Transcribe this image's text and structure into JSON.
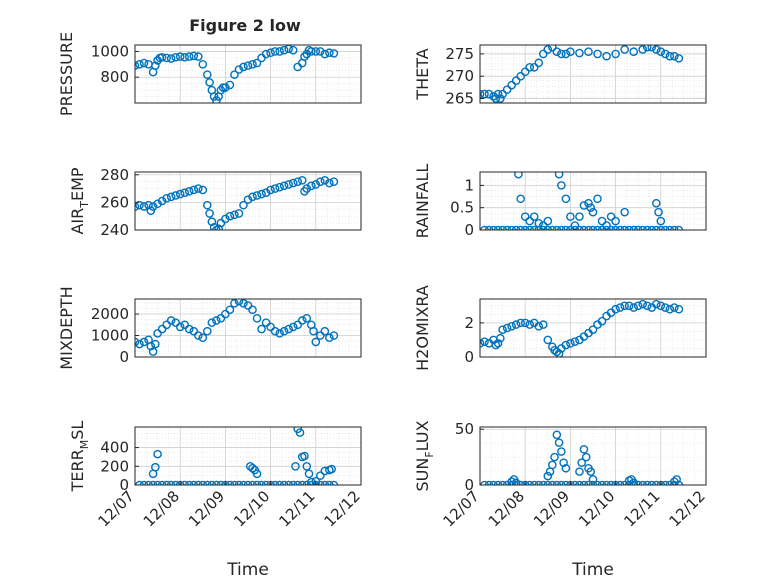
{
  "figure": {
    "title": "Figure 2 low"
  },
  "colors": {
    "marker": "#0072BD",
    "axis": "#262626",
    "grid": "#dcdcdc",
    "background": "#ffffff"
  },
  "chart_data": [
    {
      "type": "scatter",
      "marker": "open-circle",
      "grid": true,
      "minor_grid": true,
      "title": "Figure 2 low",
      "ylabel": "PRESSURE",
      "xlabel": "",
      "ylim": [
        600,
        1050
      ],
      "yticks": [
        800,
        1000
      ],
      "xticks": [],
      "x": [
        0.0,
        0.1,
        0.2,
        0.3,
        0.4,
        0.45,
        0.5,
        0.55,
        0.6,
        0.7,
        0.8,
        0.9,
        1.0,
        1.1,
        1.2,
        1.3,
        1.4,
        1.5,
        1.6,
        1.65,
        1.7,
        1.75,
        1.8,
        1.85,
        1.9,
        1.95,
        2.0,
        2.1,
        2.2,
        2.3,
        2.4,
        2.5,
        2.6,
        2.7,
        2.8,
        2.9,
        3.0,
        3.1,
        3.2,
        3.3,
        3.4,
        3.5,
        3.6,
        3.7,
        3.75,
        3.8,
        3.85,
        3.9,
        4.0,
        4.1,
        4.2,
        4.3,
        4.4
      ],
      "y": [
        890,
        900,
        910,
        900,
        840,
        890,
        930,
        950,
        955,
        950,
        945,
        955,
        960,
        955,
        960,
        965,
        960,
        900,
        820,
        760,
        700,
        650,
        620,
        650,
        700,
        720,
        720,
        740,
        820,
        860,
        880,
        890,
        900,
        910,
        950,
        980,
        990,
        1000,
        1000,
        1010,
        1020,
        1010,
        880,
        910,
        960,
        980,
        1010,
        1000,
        1000,
        1000,
        980,
        990,
        985
      ]
    },
    {
      "type": "scatter",
      "marker": "open-circle",
      "grid": true,
      "minor_grid": true,
      "ylabel": "THETA",
      "xlabel": "",
      "ylim": [
        264,
        277
      ],
      "yticks": [
        265,
        270,
        275
      ],
      "xticks": [],
      "x": [
        0.0,
        0.1,
        0.2,
        0.3,
        0.35,
        0.4,
        0.45,
        0.5,
        0.6,
        0.7,
        0.8,
        0.9,
        1.0,
        1.1,
        1.2,
        1.3,
        1.4,
        1.5,
        1.6,
        1.7,
        1.8,
        1.9,
        2.0,
        2.2,
        2.4,
        2.6,
        2.8,
        3.0,
        3.2,
        3.4,
        3.6,
        3.7,
        3.8,
        3.9,
        4.0,
        4.1,
        4.2,
        4.3,
        4.4
      ],
      "y": [
        266,
        266,
        266,
        265.5,
        265,
        266,
        265,
        266,
        267,
        268,
        269,
        270,
        271,
        272,
        272,
        273,
        275,
        276,
        276.5,
        275.5,
        275,
        275,
        275.5,
        275.2,
        275.5,
        275,
        274.5,
        275,
        276,
        275.5,
        276,
        276.5,
        276.5,
        276,
        275.5,
        275,
        274.5,
        274.5,
        274
      ]
    },
    {
      "type": "scatter",
      "marker": "open-circle",
      "grid": true,
      "minor_grid": true,
      "ylabel": "AIR_TEMP",
      "ylabel_display": "AIR",
      "ylabel_sub": "T",
      "ylabel_after": "EMP",
      "xlabel": "",
      "ylim": [
        240,
        282
      ],
      "yticks": [
        240,
        260,
        280
      ],
      "xticks": [],
      "x": [
        0.0,
        0.1,
        0.2,
        0.3,
        0.35,
        0.4,
        0.5,
        0.6,
        0.7,
        0.8,
        0.9,
        1.0,
        1.1,
        1.2,
        1.3,
        1.4,
        1.5,
        1.6,
        1.65,
        1.7,
        1.75,
        1.8,
        1.85,
        1.9,
        2.0,
        2.1,
        2.2,
        2.3,
        2.4,
        2.5,
        2.6,
        2.7,
        2.8,
        2.9,
        3.0,
        3.1,
        3.2,
        3.3,
        3.4,
        3.5,
        3.6,
        3.7,
        3.75,
        3.8,
        3.9,
        4.0,
        4.1,
        4.2,
        4.3,
        4.4
      ],
      "y": [
        257,
        258,
        257,
        258,
        254,
        257,
        259,
        261,
        263,
        264,
        265,
        266,
        267,
        268,
        269,
        270,
        269,
        258,
        252,
        246,
        242,
        240,
        241,
        245,
        248,
        250,
        251,
        252,
        258,
        262,
        264,
        265,
        266,
        267,
        269,
        270,
        271,
        272,
        273,
        274,
        275,
        276,
        268,
        270,
        272,
        273,
        275,
        276,
        274,
        275
      ]
    },
    {
      "type": "scatter",
      "marker": "open-circle",
      "grid": true,
      "minor_grid": true,
      "ylabel": "RAINFALL",
      "xlabel": "",
      "ylim": [
        0,
        1.3
      ],
      "yticks": [
        0,
        0.5,
        1
      ],
      "xticks": [],
      "x": [
        0.1,
        0.2,
        0.3,
        0.4,
        0.5,
        0.6,
        0.7,
        0.8,
        0.9,
        1.0,
        1.1,
        1.2,
        1.3,
        1.4,
        1.5,
        1.6,
        1.7,
        1.8,
        1.9,
        2.0,
        2.1,
        2.2,
        2.3,
        2.4,
        2.5,
        2.6,
        2.7,
        2.8,
        2.9,
        3.0,
        3.1,
        3.2,
        3.3,
        3.4,
        3.5,
        3.6,
        3.7,
        3.8,
        3.9,
        4.0,
        4.1,
        4.2,
        4.3,
        4.4,
        0.85,
        0.9,
        1.0,
        1.1,
        1.2,
        1.3,
        1.4,
        1.5,
        1.75,
        1.8,
        1.9,
        2.0,
        2.1,
        2.2,
        2.3,
        2.4,
        2.45,
        2.5,
        2.6,
        2.7,
        2.8,
        2.9,
        3.0,
        3.2,
        3.9,
        3.95,
        4.0
      ],
      "y": [
        0,
        0,
        0,
        0,
        0,
        0,
        0,
        0,
        0,
        0,
        0,
        0,
        0,
        0,
        0,
        0,
        0,
        0,
        0,
        0,
        0,
        0,
        0,
        0,
        0,
        0,
        0,
        0,
        0,
        0,
        0,
        0,
        0,
        0,
        0,
        0,
        0,
        0,
        0,
        0,
        0,
        0,
        0,
        0,
        1.25,
        0.7,
        0.3,
        0.2,
        0.3,
        0.15,
        0.1,
        0.2,
        1.25,
        1.0,
        0.7,
        0.3,
        0.1,
        0.3,
        0.55,
        0.6,
        0.5,
        0.4,
        0.7,
        0.2,
        0.1,
        0.3,
        0.2,
        0.4,
        0.6,
        0.4,
        0.2
      ]
    },
    {
      "type": "scatter",
      "marker": "open-circle",
      "grid": true,
      "minor_grid": true,
      "ylabel": "MIXDEPTH",
      "xlabel": "",
      "ylim": [
        0,
        2700
      ],
      "yticks": [
        0,
        1000,
        2000
      ],
      "xticks": [],
      "x": [
        0.0,
        0.1,
        0.2,
        0.3,
        0.35,
        0.4,
        0.45,
        0.5,
        0.6,
        0.7,
        0.8,
        0.9,
        1.0,
        1.1,
        1.2,
        1.3,
        1.4,
        1.5,
        1.6,
        1.7,
        1.8,
        1.9,
        2.0,
        2.1,
        2.2,
        2.3,
        2.4,
        2.5,
        2.6,
        2.7,
        2.8,
        2.9,
        3.0,
        3.1,
        3.2,
        3.3,
        3.4,
        3.5,
        3.6,
        3.7,
        3.8,
        3.9,
        3.95,
        4.0,
        4.1,
        4.2,
        4.3,
        4.4
      ],
      "y": [
        700,
        600,
        700,
        800,
        500,
        250,
        600,
        1100,
        1300,
        1500,
        1700,
        1600,
        1400,
        1500,
        1300,
        1200,
        1000,
        900,
        1200,
        1600,
        1700,
        1800,
        2000,
        2200,
        2500,
        2600,
        2500,
        2400,
        2200,
        1800,
        1300,
        1600,
        1400,
        1200,
        1100,
        1200,
        1300,
        1400,
        1500,
        1700,
        1800,
        1500,
        1200,
        700,
        1000,
        1200,
        900,
        1000
      ]
    },
    {
      "type": "scatter",
      "marker": "open-circle",
      "grid": true,
      "minor_grid": true,
      "ylabel": "H2OMIXRA",
      "xlabel": "",
      "ylim": [
        0,
        3.4
      ],
      "yticks": [
        0,
        2
      ],
      "xticks": [],
      "x": [
        0.0,
        0.1,
        0.2,
        0.3,
        0.35,
        0.4,
        0.45,
        0.5,
        0.6,
        0.7,
        0.8,
        0.9,
        1.0,
        1.1,
        1.2,
        1.3,
        1.4,
        1.5,
        1.6,
        1.65,
        1.7,
        1.75,
        1.8,
        1.9,
        2.0,
        2.1,
        2.2,
        2.3,
        2.4,
        2.5,
        2.6,
        2.7,
        2.8,
        2.9,
        3.0,
        3.1,
        3.2,
        3.3,
        3.4,
        3.5,
        3.6,
        3.7,
        3.8,
        3.9,
        4.0,
        4.1,
        4.2,
        4.3,
        4.4
      ],
      "y": [
        0.8,
        0.9,
        0.8,
        1.0,
        0.7,
        0.8,
        1.1,
        1.6,
        1.7,
        1.8,
        1.9,
        2.0,
        2.0,
        1.9,
        2.0,
        1.8,
        1.9,
        1.0,
        0.6,
        0.4,
        0.3,
        0.2,
        0.5,
        0.7,
        0.8,
        0.9,
        1.0,
        1.2,
        1.4,
        1.6,
        1.9,
        2.1,
        2.4,
        2.6,
        2.8,
        2.9,
        3.0,
        3.0,
        2.9,
        3.0,
        3.1,
        3.0,
        2.9,
        3.1,
        3.0,
        2.9,
        2.8,
        2.9,
        2.8
      ]
    },
    {
      "type": "scatter",
      "marker": "open-circle",
      "grid": true,
      "minor_grid": true,
      "ylabel": "TERR_MSL",
      "ylabel_display": "TERR",
      "ylabel_sub": "M",
      "ylabel_after": "SL",
      "xlabel": "Time",
      "ylim": [
        0,
        620
      ],
      "yticks": [
        0,
        200,
        400
      ],
      "xlim": [
        0,
        5
      ],
      "xticks": [
        0,
        1,
        2,
        3,
        4,
        5
      ],
      "xticklabels": [
        "12/07",
        "12/08",
        "12/09",
        "12/10",
        "12/11",
        "12/12"
      ],
      "x": [
        0.1,
        0.2,
        0.3,
        0.4,
        0.5,
        0.6,
        0.7,
        0.8,
        0.9,
        1.0,
        1.1,
        1.2,
        1.3,
        1.4,
        1.5,
        1.6,
        1.7,
        1.8,
        1.9,
        2.0,
        2.1,
        2.2,
        2.3,
        2.4,
        2.5,
        2.6,
        2.7,
        2.8,
        2.9,
        3.0,
        3.1,
        3.2,
        3.3,
        3.4,
        3.5,
        3.6,
        3.7,
        3.8,
        3.9,
        4.0,
        4.1,
        4.2,
        4.3,
        4.4,
        0.4,
        0.45,
        0.5,
        2.55,
        2.6,
        2.65,
        2.7,
        3.55,
        3.6,
        3.65,
        3.7,
        3.75,
        3.8,
        3.85,
        3.9,
        4.0,
        4.1,
        4.2,
        4.3,
        4.35
      ],
      "y": [
        0,
        0,
        0,
        0,
        0,
        0,
        0,
        0,
        0,
        0,
        0,
        0,
        0,
        0,
        0,
        0,
        0,
        0,
        0,
        0,
        0,
        0,
        0,
        0,
        0,
        0,
        0,
        0,
        0,
        0,
        0,
        0,
        0,
        0,
        0,
        0,
        0,
        0,
        0,
        0,
        0,
        0,
        0,
        0,
        120,
        190,
        330,
        200,
        180,
        160,
        120,
        200,
        600,
        560,
        300,
        310,
        200,
        120,
        30,
        40,
        100,
        150,
        160,
        170
      ]
    },
    {
      "type": "scatter",
      "marker": "open-circle",
      "grid": true,
      "minor_grid": true,
      "ylabel": "SUN_FLUX",
      "ylabel_display": "SUN",
      "ylabel_sub": "F",
      "ylabel_after": "LUX",
      "xlabel": "Time",
      "ylim": [
        0,
        52
      ],
      "yticks": [
        0,
        50
      ],
      "xlim": [
        0,
        5
      ],
      "xticks": [
        0,
        1,
        2,
        3,
        4,
        5
      ],
      "xticklabels": [
        "12/07",
        "12/08",
        "12/09",
        "12/10",
        "12/11",
        "12/12"
      ],
      "x": [
        0.1,
        0.2,
        0.3,
        0.4,
        0.5,
        0.6,
        0.7,
        0.8,
        0.9,
        1.0,
        1.1,
        1.2,
        1.3,
        1.4,
        1.5,
        1.6,
        1.7,
        1.8,
        1.9,
        2.0,
        2.1,
        2.2,
        2.3,
        2.4,
        2.5,
        2.6,
        2.7,
        2.8,
        2.9,
        3.0,
        3.1,
        3.2,
        3.3,
        3.4,
        3.5,
        3.6,
        3.7,
        3.8,
        3.9,
        4.0,
        4.1,
        4.2,
        4.3,
        4.4,
        0.7,
        0.75,
        0.8,
        1.5,
        1.55,
        1.6,
        1.65,
        1.7,
        1.75,
        1.8,
        1.85,
        1.9,
        2.2,
        2.25,
        2.3,
        2.35,
        2.4,
        2.45,
        2.5,
        3.3,
        3.35,
        3.4,
        4.3,
        4.35
      ],
      "y": [
        0,
        0,
        0,
        0,
        0,
        0,
        0,
        0,
        0,
        0,
        0,
        0,
        0,
        0,
        0,
        0,
        0,
        0,
        0,
        0,
        0,
        0,
        0,
        0,
        0,
        0,
        0,
        0,
        0,
        0,
        0,
        0,
        0,
        0,
        0,
        0,
        0,
        0,
        0,
        0,
        0,
        0,
        0,
        0,
        3,
        5,
        2,
        8,
        12,
        18,
        25,
        45,
        38,
        30,
        20,
        15,
        12,
        20,
        32,
        25,
        15,
        12,
        5,
        4,
        5,
        2,
        3,
        5
      ]
    }
  ]
}
